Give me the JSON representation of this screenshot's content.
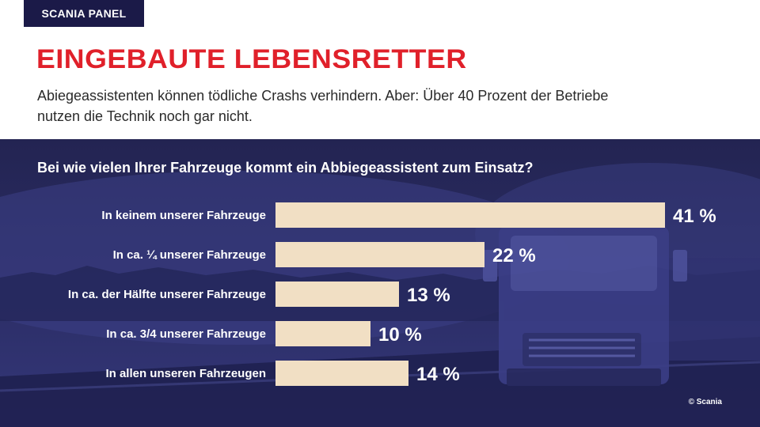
{
  "header": {
    "badge": "SCANIA PANEL",
    "title": "EINGEBAUTE LEBENSRETTER",
    "subtitle": "Abiegeassistenten können tödliche Crashs verhindern. Aber: Über 40 Prozent der Betriebe nutzen die Technik noch gar nicht."
  },
  "colors": {
    "accent": "#e0202a",
    "panel": "#2a2c63",
    "bar": "#f1dfc4",
    "text_light": "#ffffff"
  },
  "footer": {
    "copyright": "© Scania"
  },
  "chart_data": {
    "type": "bar",
    "orientation": "horizontal",
    "title": "Bei wie vielen Ihrer Fahrzeuge kommt ein Abbiegeassistent zum Einsatz?",
    "categories": [
      "In keinem unserer Fahrzeuge",
      "In ca. ¼ unserer Fahrzeuge",
      "In ca. der Hälfte unserer Fahrzeuge",
      "In ca. 3/4 unserer Fahrzeuge",
      "In allen unseren Fahrzeugen"
    ],
    "values": [
      41,
      22,
      13,
      10,
      14
    ],
    "value_labels": [
      "41 %",
      "22 %",
      "13 %",
      "10 %",
      "14 %"
    ],
    "unit": "%",
    "xlim": [
      0,
      41
    ],
    "grid": false,
    "legend": "none"
  }
}
